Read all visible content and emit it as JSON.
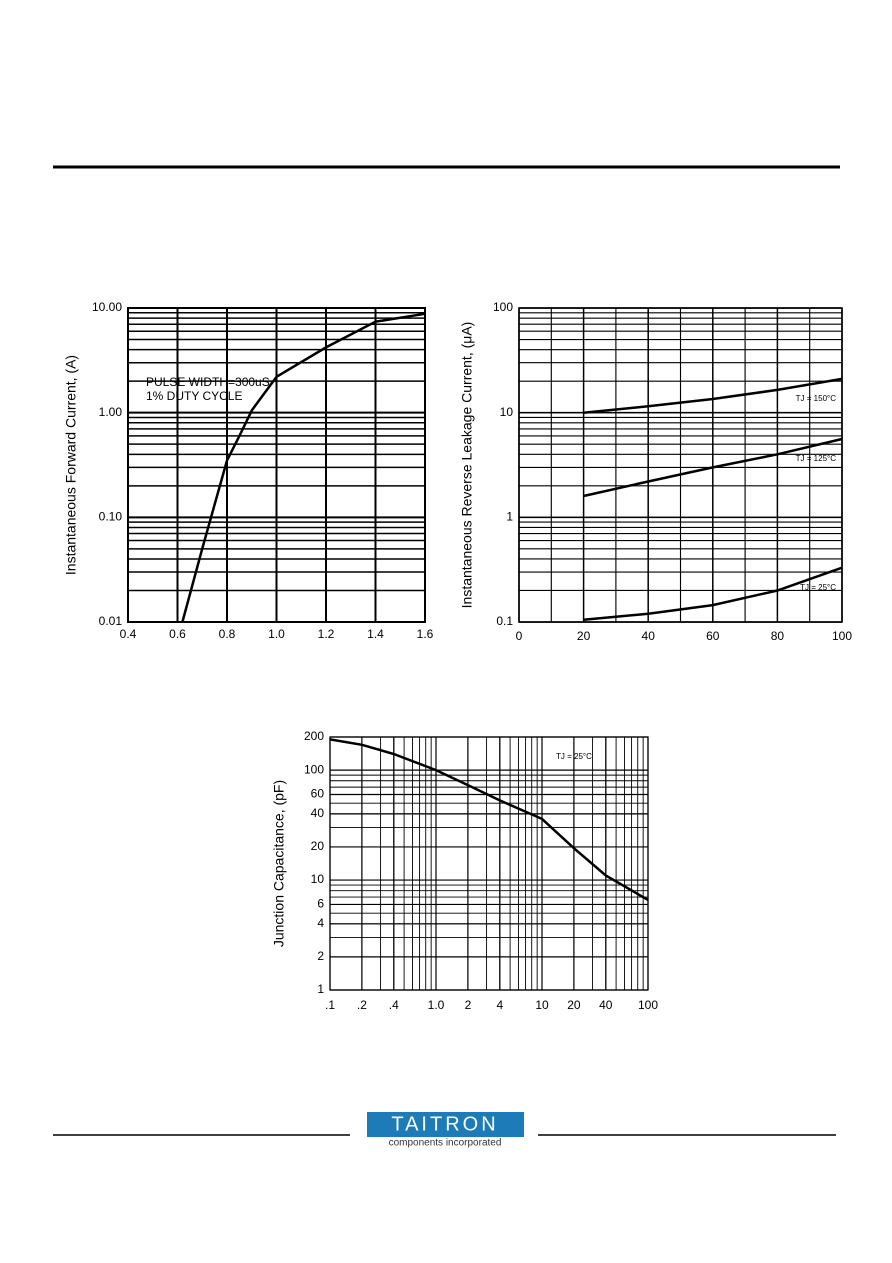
{
  "chart_data": [
    {
      "type": "line",
      "ylabel": "Instantaneous Forward Current, (A)",
      "annotations": [
        "PULSE WIDTH=300uS",
        "1% DUTY CYCLE"
      ],
      "x": [
        0.62,
        0.7,
        0.8,
        0.85,
        0.9,
        1.0,
        1.2,
        1.4,
        1.6
      ],
      "series": [
        {
          "color": "#000000",
          "values": [
            0.01,
            0.05,
            0.35,
            0.6,
            1.05,
            2.2,
            4.2,
            7.4,
            8.8
          ]
        }
      ],
      "xlim": [
        0.4,
        1.6
      ],
      "ylim": [
        0.01,
        10
      ],
      "ylog": true,
      "xlog": false,
      "xticks": [
        0.4,
        0.6,
        0.8,
        {
          "value": 1,
          "label": "1.0"
        },
        1.2,
        1.4,
        1.6
      ],
      "yticks": [
        0.01,
        {
          "value": 0.1,
          "label": "0.10"
        },
        {
          "value": 1,
          "label": "1.00"
        },
        {
          "value": 10,
          "label": "10.00"
        }
      ],
      "grid": true
    },
    {
      "type": "line",
      "ylabel": "Instantaneous Reverse Leakage Current, (μA)",
      "x": [
        20,
        40,
        60,
        80,
        100
      ],
      "series": [
        {
          "name": "TJ = 150°C",
          "color": "#000000",
          "values": [
            10,
            11.5,
            13.5,
            16.5,
            21
          ]
        },
        {
          "name": "TJ = 125°C",
          "color": "#000000",
          "values": [
            1.6,
            2.2,
            3,
            4,
            5.6
          ]
        },
        {
          "name": "TJ = 25°C",
          "color": "#000000",
          "values": [
            0.105,
            0.12,
            0.145,
            0.2,
            0.33
          ]
        }
      ],
      "xlim": [
        0,
        100
      ],
      "ylim": [
        0.1,
        100
      ],
      "ylog": true,
      "xlog": false,
      "xticks": [
        0,
        20,
        40,
        60,
        80,
        100
      ],
      "yticks": [
        0.1,
        1,
        10,
        100
      ],
      "grid": true
    },
    {
      "type": "line",
      "ylabel": "Junction Capacitance, (pF)",
      "annotations": [
        "TJ = 25°C"
      ],
      "x": [
        0.1,
        0.2,
        0.4,
        1,
        2,
        4,
        10,
        20,
        40,
        100
      ],
      "series": [
        {
          "color": "#000000",
          "values": [
            190,
            170,
            140,
            100,
            73,
            53,
            36,
            19.5,
            11,
            6.6
          ]
        }
      ],
      "xlim": [
        0.1,
        100
      ],
      "ylim": [
        1,
        200
      ],
      "ylog": true,
      "xlog": true,
      "xticks": [
        {
          "value": 0.1,
          "label": ".1"
        },
        {
          "value": 0.2,
          "label": ".2"
        },
        {
          "value": 0.4,
          "label": ".4"
        },
        {
          "value": 1,
          "label": "1.0"
        },
        2,
        4,
        10,
        20,
        40,
        100
      ],
      "yticks": [
        1,
        2,
        4,
        6,
        10,
        20,
        40,
        60,
        100,
        200
      ],
      "grid": true
    }
  ],
  "footer": {
    "logo": "TAITRON",
    "tagline": "components incorporated"
  }
}
